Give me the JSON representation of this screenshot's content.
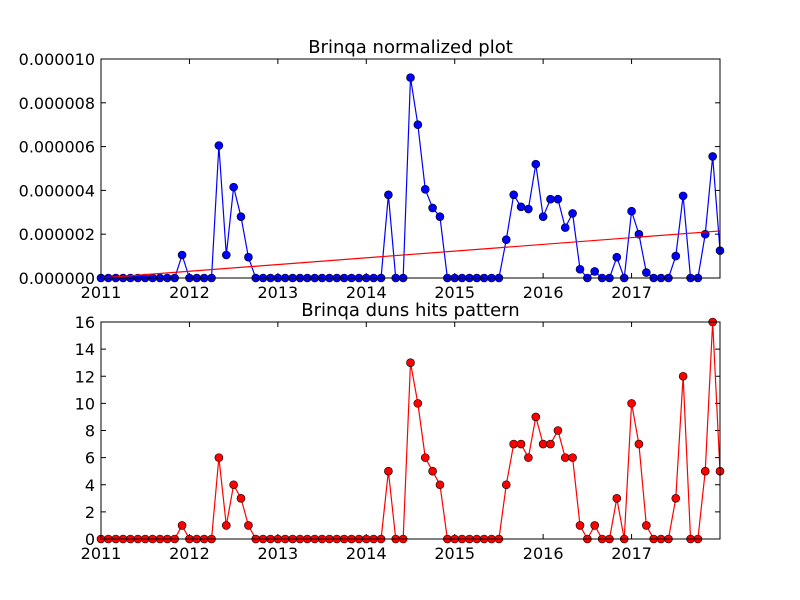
{
  "chart_data": [
    {
      "type": "line",
      "title": "Brinqa normalized plot",
      "x": [
        2011,
        2011.083,
        2011.167,
        2011.25,
        2011.333,
        2011.417,
        2011.5,
        2011.583,
        2011.667,
        2011.75,
        2011.833,
        2011.917,
        2012,
        2012.083,
        2012.167,
        2012.25,
        2012.333,
        2012.417,
        2012.5,
        2012.583,
        2012.667,
        2012.75,
        2012.833,
        2012.917,
        2013,
        2013.083,
        2013.167,
        2013.25,
        2013.333,
        2013.417,
        2013.5,
        2013.583,
        2013.667,
        2013.75,
        2013.833,
        2013.917,
        2014,
        2014.083,
        2014.167,
        2014.25,
        2014.333,
        2014.417,
        2014.5,
        2014.583,
        2014.667,
        2014.75,
        2014.833,
        2014.917,
        2015,
        2015.083,
        2015.167,
        2015.25,
        2015.333,
        2015.417,
        2015.5,
        2015.583,
        2015.667,
        2015.75,
        2015.833,
        2015.917,
        2016,
        2016.083,
        2016.167,
        2016.25,
        2016.333,
        2016.417,
        2016.5,
        2016.583,
        2016.667,
        2016.75,
        2016.833,
        2016.917,
        2017,
        2017.083,
        2017.167,
        2017.25,
        2017.333,
        2017.417,
        2017.5,
        2017.583,
        2017.667,
        2017.75,
        2017.833,
        2017.917,
        2018
      ],
      "series": [
        {
          "color": "#0000ff",
          "values": [
            0,
            0,
            0,
            0,
            0,
            0,
            0,
            0,
            0,
            0,
            0,
            1.05e-06,
            0,
            0,
            0,
            0,
            6.05e-06,
            1.05e-06,
            4.15e-06,
            2.8e-06,
            9.5e-07,
            0,
            0,
            0,
            0,
            0,
            0,
            0,
            0,
            0,
            0,
            0,
            0,
            0,
            0,
            0,
            0,
            0,
            0,
            3.8e-06,
            0,
            0,
            9.15e-06,
            7e-06,
            4.05e-06,
            3.2e-06,
            2.8e-06,
            0,
            0,
            0,
            0,
            0,
            0,
            0,
            0,
            1.75e-06,
            3.8e-06,
            3.25e-06,
            3.15e-06,
            5.2e-06,
            2.8e-06,
            3.6e-06,
            3.6e-06,
            2.3e-06,
            2.95e-06,
            4e-07,
            0,
            3e-07,
            0,
            0,
            9.5e-07,
            0,
            3.05e-06,
            2e-06,
            2.5e-07,
            0,
            0,
            0,
            1e-06,
            3.75e-06,
            0,
            0,
            2e-06,
            5.55e-06,
            1.25e-06
          ]
        }
      ],
      "trend": {
        "color": "#ff0000",
        "x": [
          2011,
          2018
        ],
        "values": [
          0,
          2.15e-06
        ]
      },
      "xlim": [
        2011,
        2018
      ],
      "xticks": [
        2011,
        2012,
        2013,
        2014,
        2015,
        2016,
        2017
      ],
      "ylim": [
        0,
        1e-05
      ],
      "yticks": [
        {
          "value": 0,
          "label": "0.000000"
        },
        {
          "value": 2e-06,
          "label": "0.000002"
        },
        {
          "value": 4e-06,
          "label": "0.000004"
        },
        {
          "value": 6e-06,
          "label": "0.000006"
        },
        {
          "value": 8e-06,
          "label": "0.000008"
        },
        {
          "value": 1e-05,
          "label": "0.000010"
        }
      ]
    },
    {
      "type": "line",
      "title": "Brinqa duns hits pattern",
      "x": [
        2011,
        2011.083,
        2011.167,
        2011.25,
        2011.333,
        2011.417,
        2011.5,
        2011.583,
        2011.667,
        2011.75,
        2011.833,
        2011.917,
        2012,
        2012.083,
        2012.167,
        2012.25,
        2012.333,
        2012.417,
        2012.5,
        2012.583,
        2012.667,
        2012.75,
        2012.833,
        2012.917,
        2013,
        2013.083,
        2013.167,
        2013.25,
        2013.333,
        2013.417,
        2013.5,
        2013.583,
        2013.667,
        2013.75,
        2013.833,
        2013.917,
        2014,
        2014.083,
        2014.167,
        2014.25,
        2014.333,
        2014.417,
        2014.5,
        2014.583,
        2014.667,
        2014.75,
        2014.833,
        2014.917,
        2015,
        2015.083,
        2015.167,
        2015.25,
        2015.333,
        2015.417,
        2015.5,
        2015.583,
        2015.667,
        2015.75,
        2015.833,
        2015.917,
        2016,
        2016.083,
        2016.167,
        2016.25,
        2016.333,
        2016.417,
        2016.5,
        2016.583,
        2016.667,
        2016.75,
        2016.833,
        2016.917,
        2017,
        2017.083,
        2017.167,
        2017.25,
        2017.333,
        2017.417,
        2017.5,
        2017.583,
        2017.667,
        2017.75,
        2017.833,
        2017.917,
        2018
      ],
      "series": [
        {
          "color": "#ff0000",
          "values": [
            0,
            0,
            0,
            0,
            0,
            0,
            0,
            0,
            0,
            0,
            0,
            1,
            0,
            0,
            0,
            0,
            6,
            1,
            4,
            3,
            1,
            0,
            0,
            0,
            0,
            0,
            0,
            0,
            0,
            0,
            0,
            0,
            0,
            0,
            0,
            0,
            0,
            0,
            0,
            5,
            0,
            0,
            13,
            10,
            6,
            5,
            4,
            0,
            0,
            0,
            0,
            0,
            0,
            0,
            0,
            4,
            7,
            7,
            6,
            9,
            7,
            7,
            8,
            6,
            6,
            1,
            0,
            1,
            0,
            0,
            3,
            0,
            10,
            7,
            1,
            0,
            0,
            0,
            3,
            12,
            0,
            0,
            5,
            16,
            5
          ]
        }
      ],
      "xlim": [
        2011,
        2018
      ],
      "xticks": [
        2011,
        2012,
        2013,
        2014,
        2015,
        2016,
        2017
      ],
      "ylim": [
        0,
        16
      ],
      "yticks": [
        0,
        2,
        4,
        6,
        8,
        10,
        12,
        14,
        16
      ]
    }
  ]
}
